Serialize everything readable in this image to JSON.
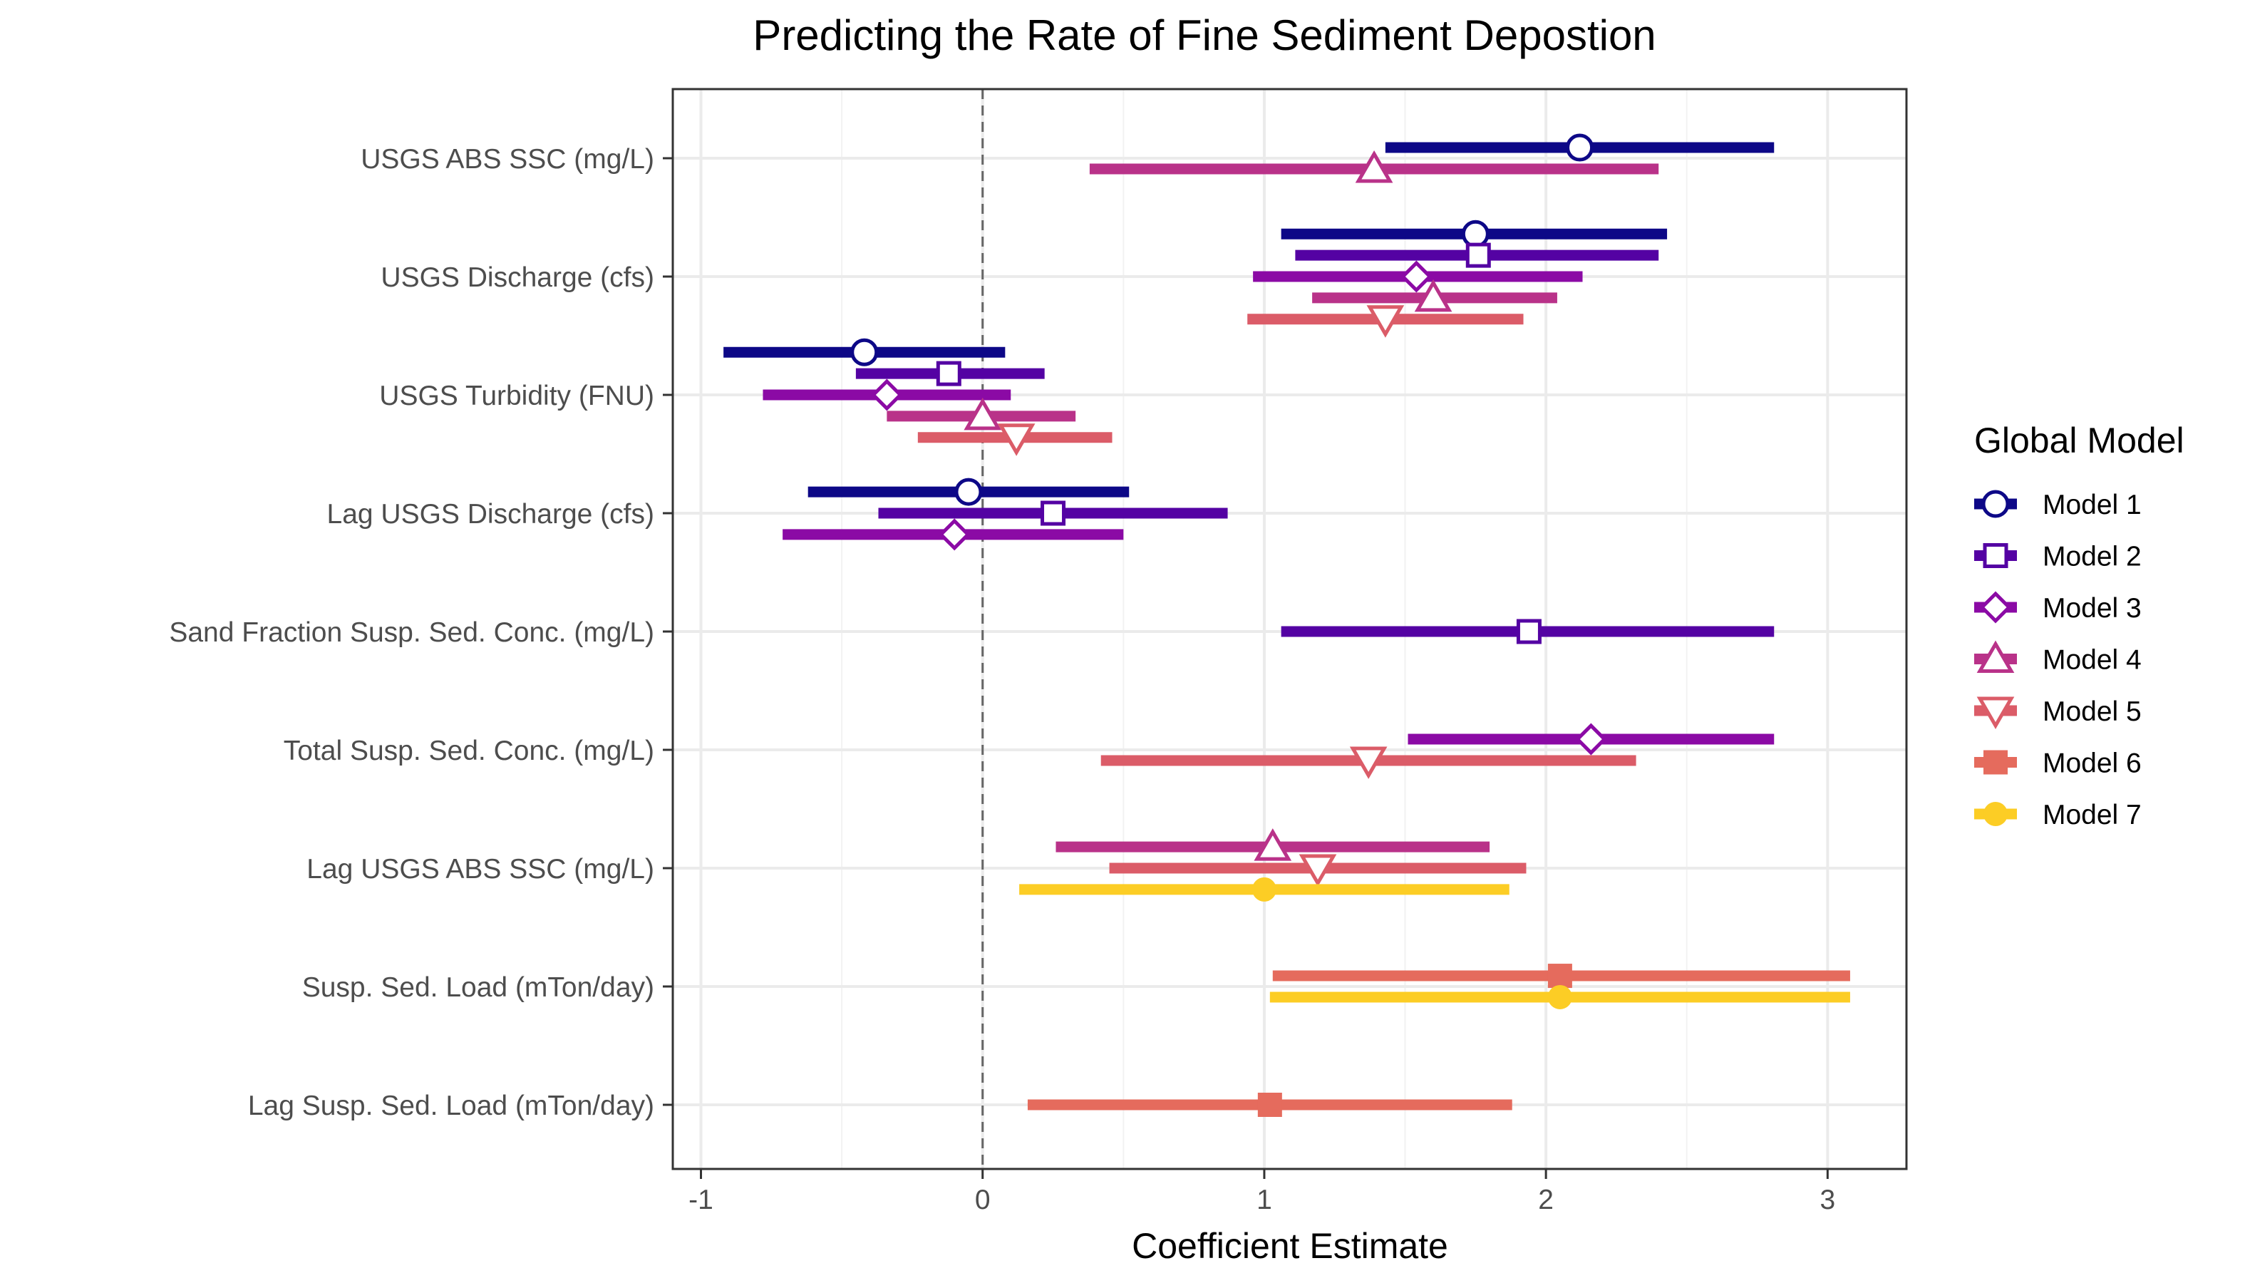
{
  "chart_data": {
    "type": "coefficient-interval",
    "title": "Predicting the Rate of Fine Sediment Depostion",
    "xlabel": "Coefficient Estimate",
    "xlim": [
      -1.1,
      3.28
    ],
    "xticks": [
      -1,
      0,
      1,
      2,
      3
    ],
    "xtick_labels": [
      "-1",
      "0",
      "1",
      "2",
      "3"
    ],
    "reference_line": 0,
    "grid": true,
    "legend": {
      "title": "Global Model",
      "placement": "right"
    },
    "categories": [
      "USGS ABS SSC (mg/L)",
      "USGS Discharge (cfs)",
      "USGS Turbidity (FNU)",
      "Lag USGS Discharge (cfs)",
      "Sand Fraction Susp. Sed. Conc. (mg/L)",
      "Total Susp. Sed. Conc. (mg/L)",
      "Lag USGS ABS SSC (mg/L)",
      "Susp. Sed. Load (mTon/day)",
      "Lag Susp. Sed. Load (mTon/day)"
    ],
    "series": [
      {
        "name": "Model 1",
        "color": "#0d0887",
        "marker": "circle-open",
        "points": [
          {
            "category": "USGS ABS SSC (mg/L)",
            "estimate": 2.12,
            "low": 1.43,
            "high": 2.81
          },
          {
            "category": "USGS Discharge (cfs)",
            "estimate": 1.75,
            "low": 1.06,
            "high": 2.43
          },
          {
            "category": "USGS Turbidity (FNU)",
            "estimate": -0.42,
            "low": -0.92,
            "high": 0.08
          },
          {
            "category": "Lag USGS Discharge (cfs)",
            "estimate": -0.05,
            "low": -0.62,
            "high": 0.52
          }
        ]
      },
      {
        "name": "Model 2",
        "color": "#5402a3",
        "marker": "square-open",
        "points": [
          {
            "category": "USGS Discharge (cfs)",
            "estimate": 1.76,
            "low": 1.11,
            "high": 2.4
          },
          {
            "category": "USGS Turbidity (FNU)",
            "estimate": -0.12,
            "low": -0.45,
            "high": 0.22
          },
          {
            "category": "Lag USGS Discharge (cfs)",
            "estimate": 0.25,
            "low": -0.37,
            "high": 0.87
          },
          {
            "category": "Sand Fraction Susp. Sed. Conc. (mg/L)",
            "estimate": 1.94,
            "low": 1.06,
            "high": 2.81
          }
        ]
      },
      {
        "name": "Model 3",
        "color": "#8b0aa5",
        "marker": "diamond-open",
        "points": [
          {
            "category": "USGS Discharge (cfs)",
            "estimate": 1.54,
            "low": 0.96,
            "high": 2.13
          },
          {
            "category": "USGS Turbidity (FNU)",
            "estimate": -0.34,
            "low": -0.78,
            "high": 0.1
          },
          {
            "category": "Lag USGS Discharge (cfs)",
            "estimate": -0.1,
            "low": -0.71,
            "high": 0.5
          },
          {
            "category": "Total Susp. Sed. Conc. (mg/L)",
            "estimate": 2.16,
            "low": 1.51,
            "high": 2.81
          }
        ]
      },
      {
        "name": "Model 4",
        "color": "#b93289",
        "marker": "triangle-open",
        "points": [
          {
            "category": "USGS ABS SSC (mg/L)",
            "estimate": 1.39,
            "low": 0.38,
            "high": 2.4
          },
          {
            "category": "USGS Discharge (cfs)",
            "estimate": 1.6,
            "low": 1.17,
            "high": 2.04
          },
          {
            "category": "USGS Turbidity (FNU)",
            "estimate": 0.0,
            "low": -0.34,
            "high": 0.33
          },
          {
            "category": "Lag USGS ABS SSC (mg/L)",
            "estimate": 1.03,
            "low": 0.26,
            "high": 1.8
          }
        ]
      },
      {
        "name": "Model 5",
        "color": "#db5c68",
        "marker": "triangle-down-open",
        "points": [
          {
            "category": "USGS Discharge (cfs)",
            "estimate": 1.43,
            "low": 0.94,
            "high": 1.92
          },
          {
            "category": "USGS Turbidity (FNU)",
            "estimate": 0.12,
            "low": -0.23,
            "high": 0.46
          },
          {
            "category": "Total Susp. Sed. Conc. (mg/L)",
            "estimate": 1.37,
            "low": 0.42,
            "high": 2.32
          },
          {
            "category": "Lag USGS ABS SSC (mg/L)",
            "estimate": 1.19,
            "low": 0.45,
            "high": 1.93
          }
        ]
      },
      {
        "name": "Model 6",
        "color": "#e56b5d",
        "marker": "square-filled",
        "points": [
          {
            "category": "Susp. Sed. Load (mTon/day)",
            "estimate": 2.05,
            "low": 1.03,
            "high": 3.08
          },
          {
            "category": "Lag Susp. Sed. Load (mTon/day)",
            "estimate": 1.02,
            "low": 0.16,
            "high": 1.88
          }
        ]
      },
      {
        "name": "Model 7",
        "color": "#fccd25",
        "marker": "circle-filled",
        "points": [
          {
            "category": "Lag USGS ABS SSC (mg/L)",
            "estimate": 1.0,
            "low": 0.13,
            "high": 1.87
          },
          {
            "category": "Susp. Sed. Load (mTon/day)",
            "estimate": 2.05,
            "low": 1.02,
            "high": 3.08
          }
        ]
      }
    ]
  }
}
